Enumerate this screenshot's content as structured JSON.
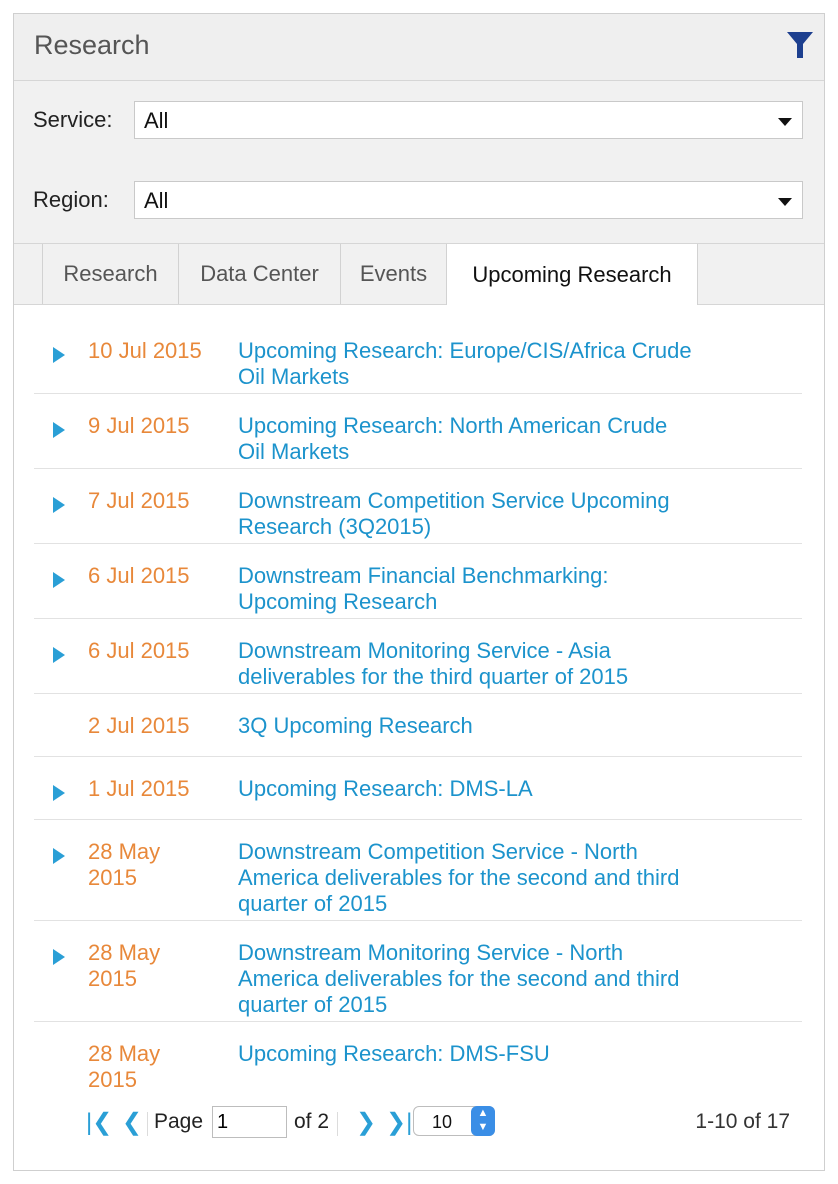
{
  "header": {
    "title": "Research",
    "filter_icon": "filter-funnel-icon"
  },
  "filters": {
    "service": {
      "label": "Service:",
      "value": "All"
    },
    "region": {
      "label": "Region:",
      "value": "All"
    }
  },
  "tabs": [
    {
      "label": "Research"
    },
    {
      "label": "Data Center"
    },
    {
      "label": "Events"
    },
    {
      "label": "Upcoming Research",
      "active": true
    }
  ],
  "items": [
    {
      "date": "10 Jul 2015",
      "title": "Upcoming Research: Europe/CIS/Africa Crude Oil Markets",
      "expandable": true
    },
    {
      "date": "9 Jul 2015",
      "title": "Upcoming Research: North American Crude Oil Markets",
      "expandable": true
    },
    {
      "date": "7 Jul 2015",
      "title": "Downstream Competition Service Upcoming Research (3Q2015)",
      "expandable": true
    },
    {
      "date": "6 Jul 2015",
      "title": "Downstream Financial Benchmarking: Upcoming Research",
      "expandable": true
    },
    {
      "date": "6 Jul 2015",
      "title": "Downstream Monitoring Service - Asia deliverables for the third quarter of 2015",
      "expandable": true
    },
    {
      "date": "2 Jul 2015",
      "title": "3Q Upcoming Research",
      "expandable": false
    },
    {
      "date": "1 Jul 2015",
      "title": "Upcoming Research: DMS-LA",
      "expandable": true
    },
    {
      "date": "28 May 2015",
      "title": "Downstream Competition Service - North America deliverables for the second and third quarter of 2015",
      "expandable": true
    },
    {
      "date": "28 May 2015",
      "title": "Downstream Monitoring Service - North America deliverables for the second and third quarter of 2015",
      "expandable": true
    },
    {
      "date": "28 May 2015",
      "title": "Upcoming Research: DMS-FSU",
      "expandable": false
    }
  ],
  "pager": {
    "page_label": "Page",
    "page_value": "1",
    "of_label": "of 2",
    "page_size": "10",
    "range": "1-10 of 17"
  },
  "colors": {
    "date": "#e8883a",
    "link": "#1c93cc",
    "accent": "#2a9fd6"
  }
}
